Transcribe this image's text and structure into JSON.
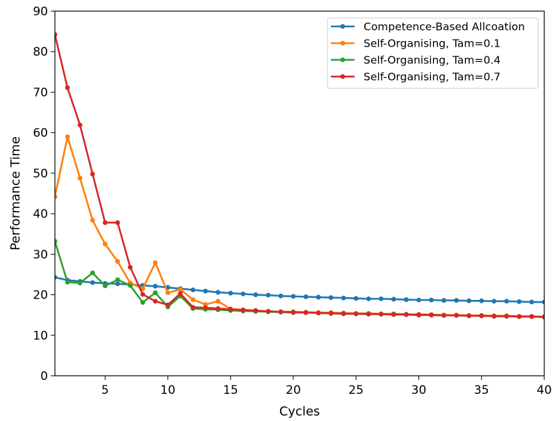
{
  "chart_data": {
    "type": "line",
    "xlabel": "Cycles",
    "ylabel": "Performance Time",
    "xlim": [
      1,
      40
    ],
    "ylim": [
      0,
      90
    ],
    "xticks": [
      5,
      10,
      15,
      20,
      25,
      30,
      35,
      40
    ],
    "yticks": [
      0,
      10,
      20,
      30,
      40,
      50,
      60,
      70,
      80,
      90
    ],
    "grid": false,
    "legend_position": "top-right",
    "x": [
      1,
      2,
      3,
      4,
      5,
      6,
      7,
      8,
      9,
      10,
      11,
      12,
      13,
      14,
      15,
      16,
      17,
      18,
      19,
      20,
      21,
      22,
      23,
      24,
      25,
      26,
      27,
      28,
      29,
      30,
      31,
      32,
      33,
      34,
      35,
      36,
      37,
      38,
      39,
      40
    ],
    "series": [
      {
        "name": "Competence-Based Allcoation",
        "color": "#1f77b4",
        "values": [
          24.3,
          23.6,
          23.3,
          23.0,
          22.8,
          22.7,
          22.5,
          22.3,
          22.1,
          21.8,
          21.5,
          21.2,
          20.9,
          20.6,
          20.4,
          20.2,
          20.0,
          19.9,
          19.7,
          19.6,
          19.5,
          19.4,
          19.3,
          19.2,
          19.1,
          19.0,
          19.0,
          18.9,
          18.8,
          18.7,
          18.7,
          18.6,
          18.6,
          18.5,
          18.5,
          18.4,
          18.4,
          18.3,
          18.2,
          18.2
        ]
      },
      {
        "name": "Self-Organising, Tam=0.1",
        "color": "#ff7f0e",
        "values": [
          44.2,
          59.0,
          48.8,
          38.4,
          32.5,
          28.2,
          22.9,
          21.5,
          27.9,
          20.5,
          21.3,
          18.8,
          17.6,
          18.4,
          16.5,
          16.3,
          16.1,
          15.9,
          15.8,
          15.8,
          15.7,
          15.6,
          15.6,
          15.5,
          15.4,
          15.4,
          15.3,
          15.3,
          15.2,
          15.2,
          15.1,
          15.0,
          15.0,
          14.9,
          14.9,
          14.8,
          14.8,
          14.7,
          14.7,
          14.6
        ]
      },
      {
        "name": "Self-Organising, Tam=0.4",
        "color": "#2ca02c",
        "values": [
          33.2,
          23.1,
          22.9,
          25.4,
          22.2,
          23.7,
          22.3,
          18.1,
          20.5,
          17.0,
          19.7,
          16.6,
          16.4,
          16.3,
          16.1,
          16.0,
          15.9,
          15.8,
          15.7,
          15.6,
          15.6,
          15.5,
          15.4,
          15.4,
          15.3,
          15.3,
          15.2,
          15.2,
          15.1,
          15.0,
          15.0,
          14.9,
          14.9,
          14.8,
          14.8,
          14.7,
          14.7,
          14.6,
          14.6,
          14.5
        ]
      },
      {
        "name": "Self-Organising, Tam=0.7",
        "color": "#d62728",
        "values": [
          84.2,
          71.1,
          61.9,
          49.8,
          37.8,
          37.8,
          26.8,
          20.1,
          18.4,
          17.5,
          20.3,
          16.9,
          16.8,
          16.6,
          16.4,
          16.2,
          16.1,
          15.9,
          15.8,
          15.7,
          15.6,
          15.5,
          15.4,
          15.3,
          15.3,
          15.2,
          15.2,
          15.1,
          15.1,
          15.0,
          15.0,
          14.9,
          14.9,
          14.8,
          14.8,
          14.7,
          14.7,
          14.6,
          14.6,
          14.5
        ]
      }
    ]
  }
}
